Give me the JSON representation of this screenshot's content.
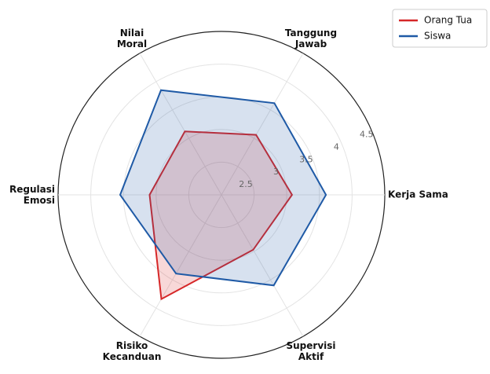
{
  "chart_data": {
    "type": "radar",
    "categories": [
      "Kerja Sama",
      "Tanggung\nJawab",
      "Nilai\nMoral",
      "Regulasi\nEmosi",
      "Risiko\nKecanduan",
      "Supervisi\nAktif"
    ],
    "series": [
      {
        "name": "Orang Tua",
        "color": "#d62728",
        "values": [
          3.08,
          3.06,
          3.12,
          3.1,
          3.84,
          2.97
        ]
      },
      {
        "name": "Siswa",
        "color": "#1f5aa6",
        "values": [
          3.6,
          3.62,
          3.85,
          3.55,
          3.39,
          3.6
        ]
      }
    ],
    "rlim": [
      2,
      4.5
    ],
    "rticks": [
      2.5,
      3.0,
      3.5,
      4.0,
      4.5
    ],
    "grid": true,
    "legend": "upper right"
  }
}
